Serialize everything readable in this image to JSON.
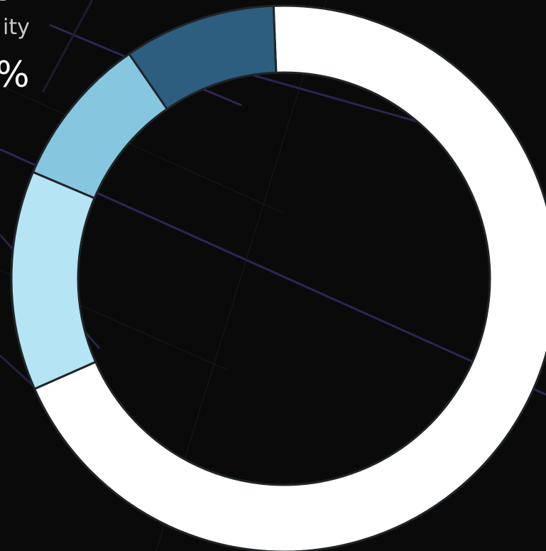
{
  "chart_data": {
    "type": "donut",
    "values": [
      69,
      13,
      9,
      9
    ],
    "colors": [
      "#ffffff",
      "#b5e4f4",
      "#86c7df",
      "#2d5e80"
    ],
    "annotations": [
      "g",
      "ity",
      "%"
    ]
  }
}
